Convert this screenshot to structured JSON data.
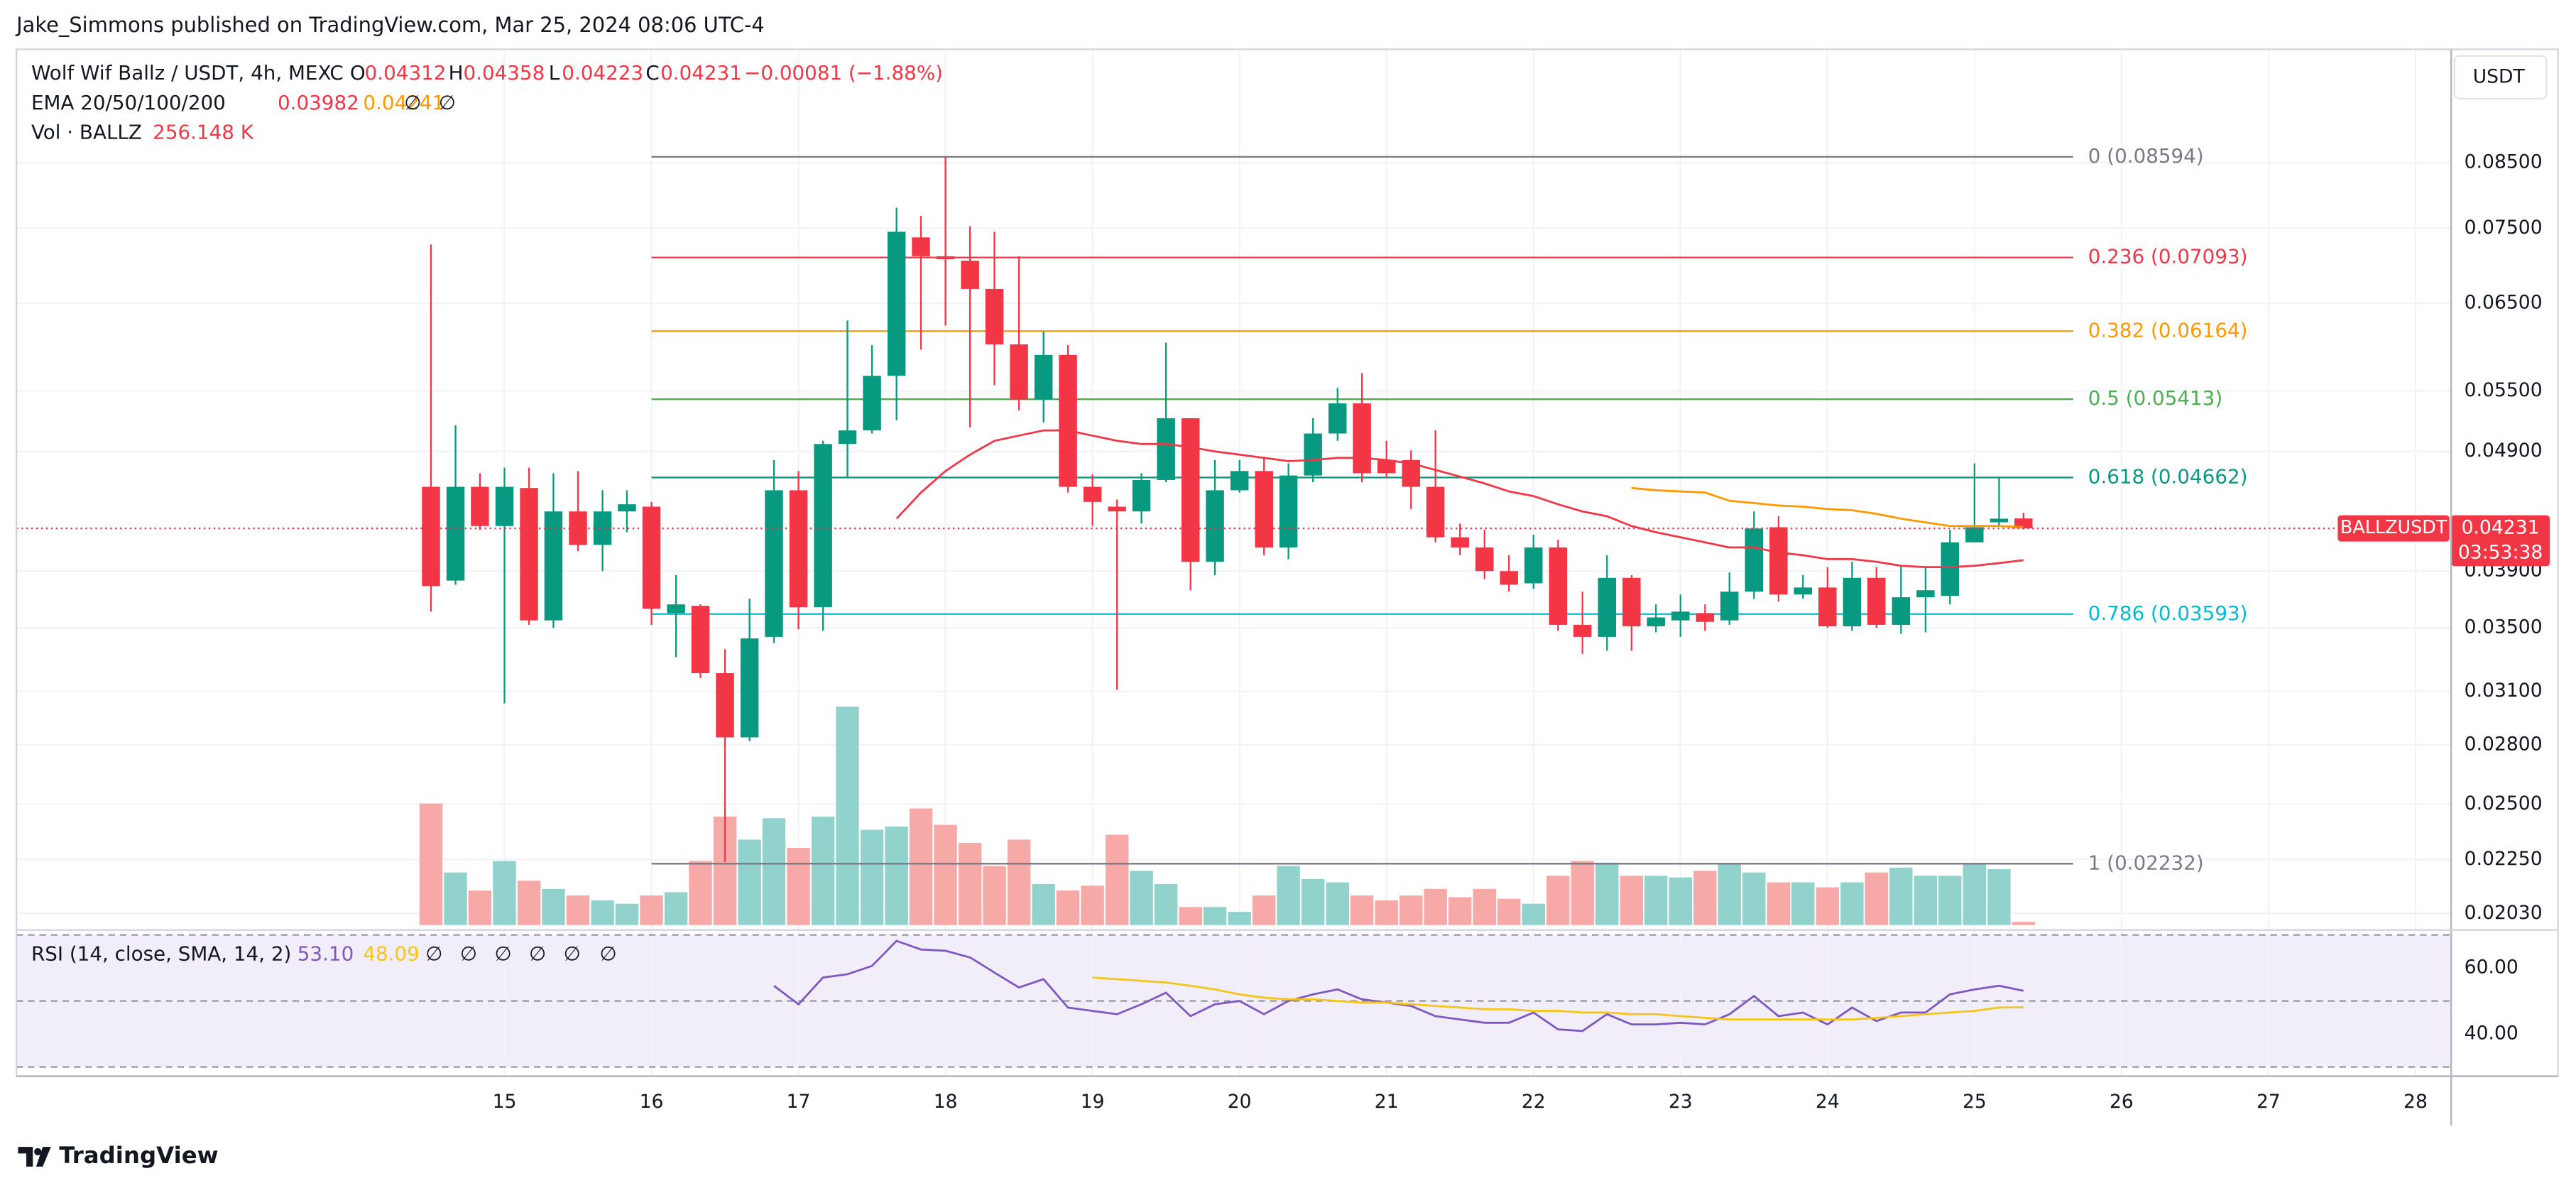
{
  "header": {
    "publisher": "Jake_Simmons published on TradingView.com, Mar 25, 2024 08:06 UTC-4"
  },
  "chart_data": {
    "type": "candlestick",
    "title": "Wolf Wif Ballz / USDT, 4h, MEXC",
    "ohlc_letters": [
      "O",
      "H",
      "L",
      "C"
    ],
    "change_label": "−0.00081 (−1.88%)",
    "up_color": "#089981",
    "down_color": "#f23645",
    "log_scale": true,
    "grid": true,
    "y_axis_unit": "USDT",
    "ylim": [
      0.01973,
      0.1055
    ],
    "yticks": [
      {
        "value": 0.085,
        "label": "0.08500"
      },
      {
        "value": 0.075,
        "label": "0.07500"
      },
      {
        "value": 0.065,
        "label": "0.06500"
      },
      {
        "value": 0.055,
        "label": "0.05500"
      },
      {
        "value": 0.049,
        "label": "0.04900"
      },
      {
        "value": 0.039,
        "label": "0.03900"
      },
      {
        "value": 0.035,
        "label": "0.03500"
      },
      {
        "value": 0.031,
        "label": "0.03100"
      },
      {
        "value": 0.028,
        "label": "0.02800"
      },
      {
        "value": 0.025,
        "label": "0.02500"
      },
      {
        "value": 0.0225,
        "label": "0.02250"
      },
      {
        "value": 0.0203,
        "label": "0.02030"
      }
    ],
    "xlim": [
      11.68,
      28.22
    ],
    "xticks": [
      15,
      16,
      17,
      18,
      19,
      20,
      21,
      22,
      23,
      24,
      25,
      26,
      27,
      28
    ],
    "x": [
      14.5,
      14.667,
      14.833,
      15,
      15.167,
      15.333,
      15.5,
      15.667,
      15.833,
      16,
      16.167,
      16.333,
      16.5,
      16.667,
      16.833,
      17,
      17.167,
      17.333,
      17.5,
      17.667,
      17.833,
      18,
      18.167,
      18.333,
      18.5,
      18.667,
      18.833,
      19,
      19.167,
      19.333,
      19.5,
      19.667,
      19.833,
      20,
      20.167,
      20.333,
      20.5,
      20.667,
      20.833,
      21,
      21.167,
      21.333,
      21.5,
      21.667,
      21.833,
      22,
      22.167,
      22.333,
      22.5,
      22.667,
      22.833,
      23,
      23.167,
      23.333,
      23.5,
      23.667,
      23.833,
      24,
      24.167,
      24.333,
      24.5,
      24.667,
      24.833,
      25,
      25.167,
      25.333
    ],
    "open": [
      0.0458,
      0.0383,
      0.0458,
      0.0425,
      0.0457,
      0.0355,
      0.0437,
      0.041,
      0.0437,
      0.0441,
      0.036,
      0.0365,
      0.0321,
      0.0284,
      0.0344,
      0.0455,
      0.0364,
      0.0497,
      0.051,
      0.0566,
      0.0737,
      0.0711,
      0.0705,
      0.0668,
      0.0601,
      0.0541,
      0.0589,
      0.0458,
      0.0441,
      0.0437,
      0.0464,
      0.0522,
      0.0397,
      0.0455,
      0.0472,
      0.0408,
      0.0468,
      0.0507,
      0.0537,
      0.0482,
      0.0482,
      0.0458,
      0.0416,
      0.0408,
      0.039,
      0.0381,
      0.0408,
      0.0352,
      0.0344,
      0.0385,
      0.0351,
      0.0355,
      0.036,
      0.0355,
      0.0375,
      0.0424,
      0.0373,
      0.0378,
      0.0351,
      0.0385,
      0.0352,
      0.0371,
      0.0372,
      0.0412,
      0.0428,
      0.04312
    ],
    "high": [
      0.0727,
      0.0515,
      0.047,
      0.0475,
      0.0475,
      0.047,
      0.0472,
      0.0455,
      0.0455,
      0.0445,
      0.0387,
      0.0366,
      0.0336,
      0.037,
      0.0482,
      0.0472,
      0.05,
      0.0629,
      0.06,
      0.078,
      0.0768,
      0.08594,
      0.0753,
      0.0745,
      0.0711,
      0.0616,
      0.06,
      0.0469,
      0.0447,
      0.047,
      0.0603,
      0.0522,
      0.0482,
      0.0482,
      0.0485,
      0.0479,
      0.0522,
      0.0553,
      0.0569,
      0.05,
      0.0491,
      0.051,
      0.0427,
      0.0422,
      0.0402,
      0.0418,
      0.0414,
      0.0375,
      0.0402,
      0.0387,
      0.0366,
      0.0373,
      0.0366,
      0.0389,
      0.0437,
      0.0433,
      0.0387,
      0.0393,
      0.0397,
      0.0393,
      0.0394,
      0.0393,
      0.0422,
      0.0479,
      0.0467,
      0.04358
    ],
    "low": [
      0.0361,
      0.038,
      0.0422,
      0.0303,
      0.0352,
      0.035,
      0.0405,
      0.039,
      0.042,
      0.0352,
      0.0331,
      0.0318,
      0.0224,
      0.0282,
      0.034,
      0.0349,
      0.0348,
      0.0467,
      0.0507,
      0.052,
      0.0595,
      0.0623,
      0.0513,
      0.0556,
      0.053,
      0.0518,
      0.0453,
      0.0425,
      0.0311,
      0.0427,
      0.0462,
      0.0376,
      0.0387,
      0.0453,
      0.0402,
      0.0399,
      0.0462,
      0.05,
      0.0462,
      0.0466,
      0.0439,
      0.0412,
      0.0402,
      0.0384,
      0.0375,
      0.0377,
      0.0348,
      0.0333,
      0.0335,
      0.0335,
      0.0347,
      0.0344,
      0.0348,
      0.0352,
      0.037,
      0.0368,
      0.037,
      0.035,
      0.0348,
      0.035,
      0.0346,
      0.0347,
      0.0366,
      0.0412,
      0.0425,
      0.04223
    ],
    "close": [
      0.0379,
      0.0458,
      0.0425,
      0.0458,
      0.0355,
      0.0437,
      0.041,
      0.0437,
      0.0443,
      0.0363,
      0.0366,
      0.0321,
      0.0284,
      0.0343,
      0.0455,
      0.0364,
      0.0497,
      0.051,
      0.0566,
      0.0745,
      0.0711,
      0.0707,
      0.0668,
      0.0601,
      0.0541,
      0.0589,
      0.0458,
      0.0445,
      0.0437,
      0.0464,
      0.0522,
      0.0397,
      0.0455,
      0.0472,
      0.0408,
      0.0468,
      0.0507,
      0.0537,
      0.047,
      0.047,
      0.0458,
      0.0416,
      0.0408,
      0.039,
      0.038,
      0.0408,
      0.0352,
      0.0344,
      0.0385,
      0.0351,
      0.0357,
      0.0361,
      0.0354,
      0.0375,
      0.0423,
      0.0373,
      0.0378,
      0.0351,
      0.0385,
      0.0352,
      0.0371,
      0.0376,
      0.0412,
      0.0424,
      0.0431,
      0.04231
    ],
    "last_price": {
      "symbol": "BALLZUSDT",
      "countdown": "03:53:38"
    },
    "ema": {
      "label": "EMA 20/50/100/200",
      "hidden": [
        "∅",
        "∅"
      ],
      "series": [
        {
          "color": "#f23645",
          "values": [
            null,
            null,
            null,
            null,
            null,
            null,
            null,
            null,
            null,
            null,
            null,
            null,
            null,
            null,
            null,
            null,
            null,
            null,
            null,
            0.0431,
            0.0453,
            0.0472,
            0.0487,
            0.05,
            0.0505,
            0.051,
            0.051,
            0.0505,
            0.05,
            0.0497,
            0.0497,
            0.0494,
            0.049,
            0.0487,
            0.0484,
            0.0481,
            0.0482,
            0.0484,
            0.0484,
            0.0482,
            0.0479,
            0.0473,
            0.0467,
            0.0461,
            0.0454,
            0.045,
            0.0443,
            0.0437,
            0.0433,
            0.0425,
            0.042,
            0.0416,
            0.0412,
            0.0408,
            0.0408,
            0.0404,
            0.0402,
            0.0399,
            0.0399,
            0.0397,
            0.0394,
            0.0393,
            0.0393,
            0.0394,
            0.0396,
            0.03982
          ]
        },
        {
          "color": "#ff9800",
          "values": [
            null,
            null,
            null,
            null,
            null,
            null,
            null,
            null,
            null,
            null,
            null,
            null,
            null,
            null,
            null,
            null,
            null,
            null,
            null,
            null,
            null,
            null,
            null,
            null,
            null,
            null,
            null,
            null,
            null,
            null,
            null,
            null,
            null,
            null,
            null,
            null,
            null,
            null,
            null,
            null,
            null,
            null,
            null,
            null,
            null,
            null,
            null,
            null,
            null,
            0.0457,
            0.0455,
            0.0454,
            0.0453,
            0.0446,
            0.0444,
            0.0442,
            0.0441,
            0.0439,
            0.0438,
            0.0435,
            0.0431,
            0.0428,
            0.0425,
            0.0425,
            0.0425,
            0.04241
          ]
        }
      ]
    },
    "volume": {
      "label": "Vol · BALLZ",
      "value_label": "256.148 K",
      "up_color": "#92d2cc",
      "down_color": "#f7a9a7",
      "values": [
        9472000,
        4096000,
        2688000,
        4992000,
        3456000,
        2816000,
        2304000,
        1920000,
        1664000,
        2304000,
        2560000,
        4992000,
        8448000,
        6656000,
        8320000,
        6016000,
        8448000,
        17024000,
        7424000,
        7680000,
        9088000,
        7808000,
        6400000,
        4608000,
        6656000,
        3200000,
        2688000,
        3072000,
        7040000,
        4224000,
        3200000,
        1408000,
        1408000,
        1024000,
        2304000,
        4608000,
        3584000,
        3328000,
        2304000,
        1920000,
        2304000,
        2816000,
        2176000,
        2816000,
        2048000,
        1664000,
        3840000,
        4992000,
        4864000,
        3840000,
        3840000,
        3712000,
        4224000,
        4736000,
        4096000,
        3328000,
        3328000,
        2944000,
        3328000,
        4096000,
        4480000,
        3840000,
        3840000,
        4736000,
        4352000,
        256148
      ]
    },
    "fib": {
      "levels": [
        {
          "value": 0.08594,
          "label": "0 (0.08594)",
          "color": "#787b86"
        },
        {
          "value": 0.07093,
          "label": "0.236 (0.07093)",
          "color": "#f23645"
        },
        {
          "value": 0.06164,
          "label": "0.382 (0.06164)",
          "color": "#ff9800"
        },
        {
          "value": 0.05413,
          "label": "0.5 (0.05413)",
          "color": "#4caf50"
        },
        {
          "value": 0.04662,
          "label": "0.618 (0.04662)",
          "color": "#089981"
        },
        {
          "value": 0.03593,
          "label": "0.786 (0.03593)",
          "color": "#00bcd4"
        },
        {
          "value": 0.02232,
          "label": "1 (0.02232)",
          "color": "#787b86"
        }
      ]
    },
    "rsi": {
      "label": "RSI (14, close, SMA, 14, 2)",
      "value_labels": [
        "53.10",
        "48.09"
      ],
      "hidden": [
        "∅",
        "∅",
        "∅",
        "∅",
        "∅",
        "∅"
      ],
      "ylim": [
        29.2,
        70.5
      ],
      "yticks": [
        {
          "value": 60,
          "label": "60.00"
        },
        {
          "value": 40,
          "label": "40.00"
        }
      ],
      "bands": [
        70,
        50,
        30
      ],
      "series": [
        {
          "color": "#7e57c2",
          "values": [
            null,
            null,
            null,
            null,
            null,
            null,
            null,
            null,
            null,
            null,
            null,
            null,
            null,
            null,
            54.6,
            49.0,
            57.1,
            58.1,
            60.6,
            68.2,
            65.6,
            65.2,
            63.2,
            58.6,
            54.1,
            56.6,
            48.0,
            47.0,
            46.0,
            49.0,
            52.5,
            45.4,
            49.0,
            50.0,
            46.0,
            50.0,
            52.0,
            53.5,
            50.5,
            49.5,
            48.5,
            45.4,
            44.4,
            43.4,
            43.4,
            46.5,
            41.4,
            40.9,
            46.0,
            42.9,
            42.9,
            43.4,
            42.9,
            46.0,
            51.5,
            45.4,
            46.5,
            42.9,
            48.0,
            43.9,
            46.5,
            46.5,
            52.0,
            53.5,
            54.6,
            53.1
          ]
        },
        {
          "color": "#f5c518",
          "values": [
            null,
            null,
            null,
            null,
            null,
            null,
            null,
            null,
            null,
            null,
            null,
            null,
            null,
            null,
            null,
            null,
            null,
            null,
            null,
            null,
            null,
            null,
            null,
            null,
            null,
            null,
            null,
            57.1,
            56.6,
            56.1,
            55.6,
            54.6,
            53.5,
            52.0,
            51.0,
            50.5,
            50.5,
            50.0,
            49.5,
            49.5,
            49.0,
            48.5,
            48.0,
            47.5,
            47.5,
            47.0,
            47.0,
            46.5,
            46.5,
            46.0,
            46.0,
            45.4,
            44.9,
            44.4,
            44.4,
            44.4,
            44.4,
            44.4,
            44.4,
            44.9,
            45.4,
            46.0,
            46.5,
            47.0,
            48.0,
            48.09
          ]
        }
      ]
    }
  },
  "footer": {
    "brand": "TradingView"
  }
}
